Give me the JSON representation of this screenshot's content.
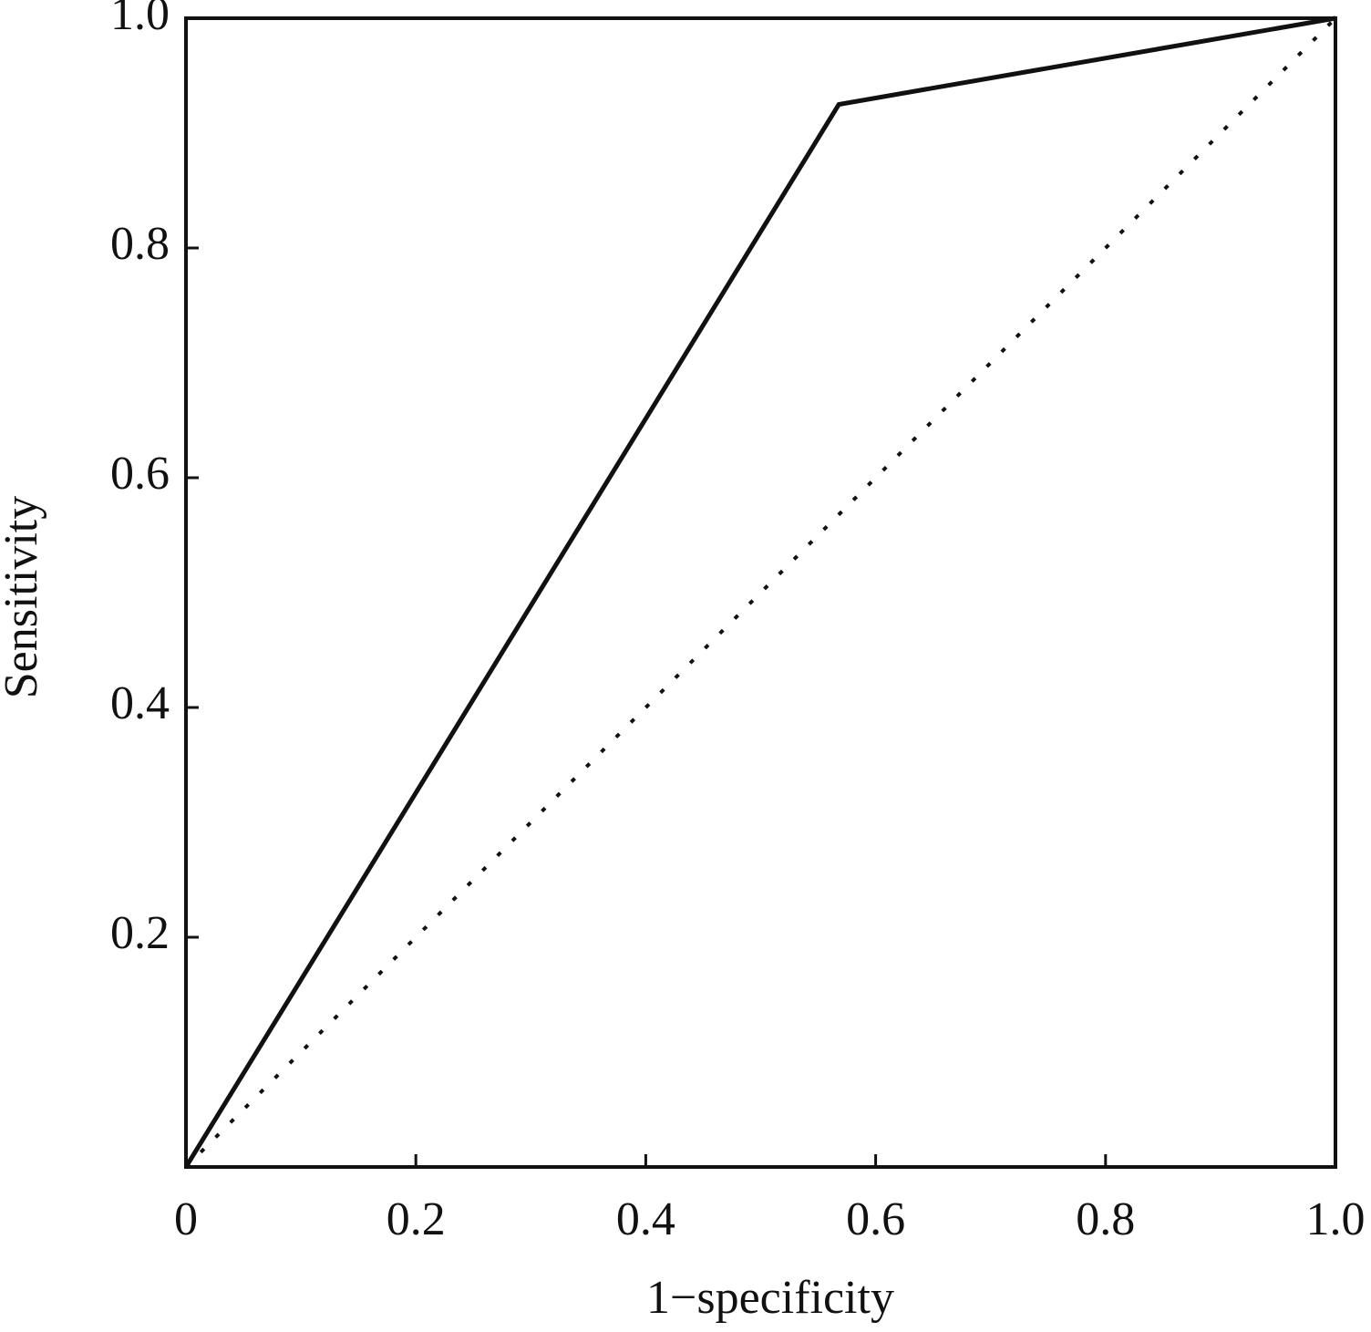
{
  "chart_data": {
    "type": "line",
    "x_label": "1−specificity",
    "y_label": "Sensitivity",
    "xlim": [
      0,
      1
    ],
    "ylim": [
      0,
      1
    ],
    "xticks": [
      0,
      0.2,
      0.4,
      0.6,
      0.8,
      {
        "value": 1,
        "label": "1.0"
      }
    ],
    "yticks": [
      0.2,
      0.4,
      0.6,
      0.8,
      {
        "value": 1,
        "label": "1.0"
      }
    ],
    "series": [
      {
        "color": "#111111",
        "style": "solid",
        "x": [
          0,
          0.568,
          1
        ],
        "values": [
          0,
          0.925,
          1
        ]
      },
      {
        "color": "#111111",
        "style": "dotted",
        "x": [
          0,
          1
        ],
        "values": [
          0,
          1
        ]
      }
    ]
  }
}
